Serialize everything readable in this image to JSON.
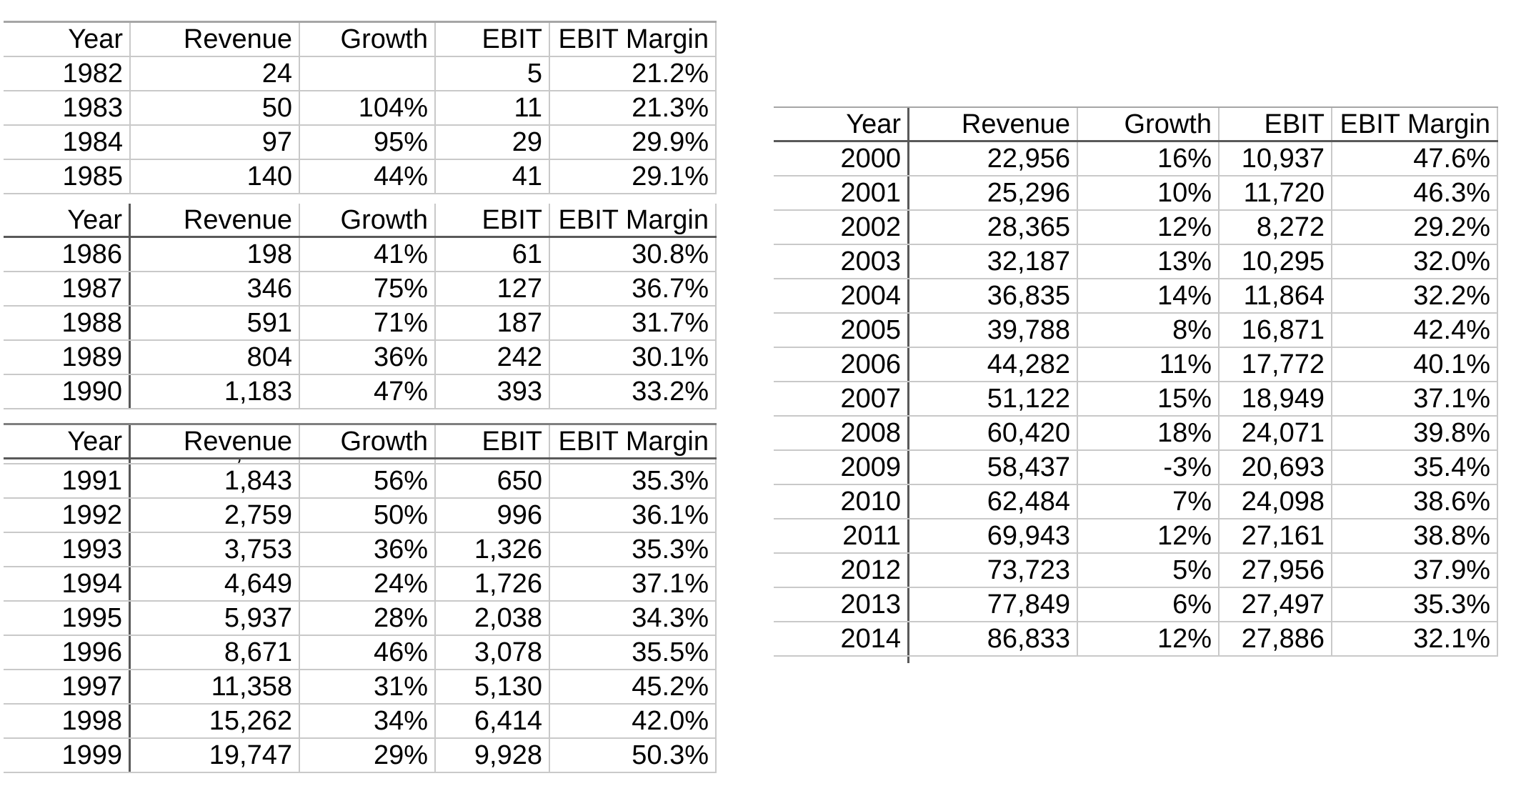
{
  "colors": {
    "background": "#ffffff",
    "text": "#000000",
    "gridline_light": "#c9c9c9",
    "gridline_dark": "#595959",
    "table_top_border_medium": "#7f7f7f",
    "table_top_border_light": "#a6a6a6"
  },
  "chart_data": [
    {
      "type": "table",
      "name": "table-1982-1985",
      "columns": [
        "Year",
        "Revenue",
        "Growth",
        "EBIT",
        "EBIT Margin"
      ],
      "rows": [
        [
          "1982",
          "24",
          "",
          "5",
          "21.2%"
        ],
        [
          "1983",
          "50",
          "104%",
          "11",
          "21.3%"
        ],
        [
          "1984",
          "97",
          "95%",
          "29",
          "29.9%"
        ],
        [
          "1985",
          "140",
          "44%",
          "41",
          "29.1%"
        ]
      ]
    },
    {
      "type": "table",
      "name": "table-1986-1990",
      "columns": [
        "Year",
        "Revenue",
        "Growth",
        "EBIT",
        "EBIT Margin"
      ],
      "rows": [
        [
          "1986",
          "198",
          "41%",
          "61",
          "30.8%"
        ],
        [
          "1987",
          "346",
          "75%",
          "127",
          "36.7%"
        ],
        [
          "1988",
          "591",
          "71%",
          "187",
          "31.7%"
        ],
        [
          "1989",
          "804",
          "36%",
          "242",
          "30.1%"
        ],
        [
          "1990",
          "1,183",
          "47%",
          "393",
          "33.2%"
        ]
      ]
    },
    {
      "type": "table",
      "name": "table-1991-1999",
      "columns": [
        "Year",
        "Revenue",
        "Growth",
        "EBIT",
        "EBIT Margin"
      ],
      "cropped_row_fragment": ",",
      "rows": [
        [
          "1991",
          "1,843",
          "56%",
          "650",
          "35.3%"
        ],
        [
          "1992",
          "2,759",
          "50%",
          "996",
          "36.1%"
        ],
        [
          "1993",
          "3,753",
          "36%",
          "1,326",
          "35.3%"
        ],
        [
          "1994",
          "4,649",
          "24%",
          "1,726",
          "37.1%"
        ],
        [
          "1995",
          "5,937",
          "28%",
          "2,038",
          "34.3%"
        ],
        [
          "1996",
          "8,671",
          "46%",
          "3,078",
          "35.5%"
        ],
        [
          "1997",
          "11,358",
          "31%",
          "5,130",
          "45.2%"
        ],
        [
          "1998",
          "15,262",
          "34%",
          "6,414",
          "42.0%"
        ],
        [
          "1999",
          "19,747",
          "29%",
          "9,928",
          "50.3%"
        ]
      ]
    },
    {
      "type": "table",
      "name": "table-2000-2014",
      "columns": [
        "Year",
        "Revenue",
        "Growth",
        "EBIT",
        "EBIT Margin"
      ],
      "rows": [
        [
          "2000",
          "22,956",
          "16%",
          "10,937",
          "47.6%"
        ],
        [
          "2001",
          "25,296",
          "10%",
          "11,720",
          "46.3%"
        ],
        [
          "2002",
          "28,365",
          "12%",
          "8,272",
          "29.2%"
        ],
        [
          "2003",
          "32,187",
          "13%",
          "10,295",
          "32.0%"
        ],
        [
          "2004",
          "36,835",
          "14%",
          "11,864",
          "32.2%"
        ],
        [
          "2005",
          "39,788",
          "8%",
          "16,871",
          "42.4%"
        ],
        [
          "2006",
          "44,282",
          "11%",
          "17,772",
          "40.1%"
        ],
        [
          "2007",
          "51,122",
          "15%",
          "18,949",
          "37.1%"
        ],
        [
          "2008",
          "60,420",
          "18%",
          "24,071",
          "39.8%"
        ],
        [
          "2009",
          "58,437",
          "-3%",
          "20,693",
          "35.4%"
        ],
        [
          "2010",
          "62,484",
          "7%",
          "24,098",
          "38.6%"
        ],
        [
          "2011",
          "69,943",
          "12%",
          "27,161",
          "38.8%"
        ],
        [
          "2012",
          "73,723",
          "5%",
          "27,956",
          "37.9%"
        ],
        [
          "2013",
          "77,849",
          "6%",
          "27,497",
          "35.3%"
        ],
        [
          "2014",
          "86,833",
          "12%",
          "27,886",
          "32.1%"
        ]
      ]
    }
  ]
}
